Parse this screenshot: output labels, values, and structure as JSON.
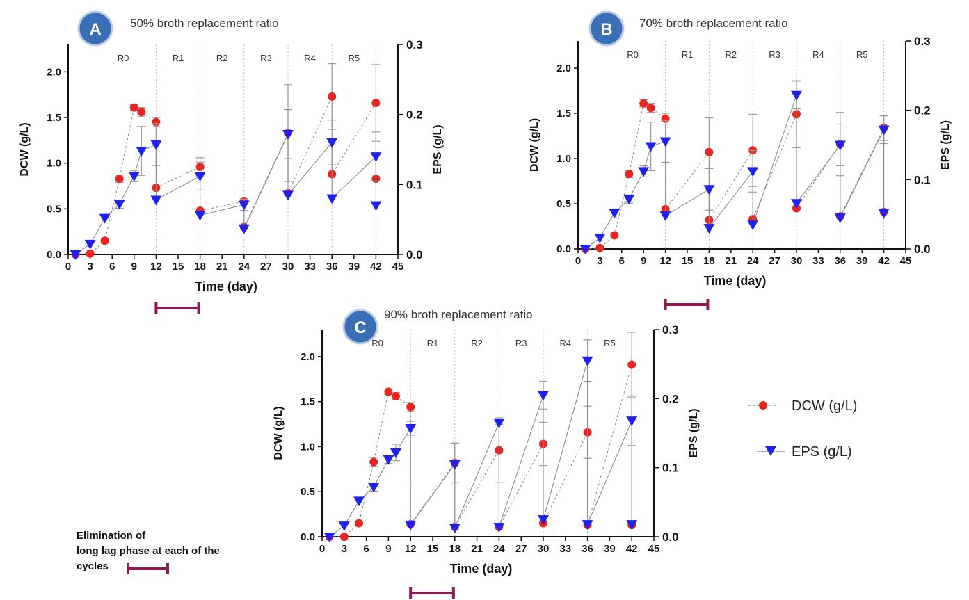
{
  "legend": {
    "dcw": "DCW (g/L)",
    "eps": "EPS (g/L)"
  },
  "note": {
    "lines": [
      "Elimination of",
      "long lag phase at each of the",
      "cycles"
    ]
  },
  "colors": {
    "dcw": "#e8251f",
    "eps": "#1f22e8",
    "badge": "#3a6fb5",
    "badge_border": "#b8ccea",
    "bar": "#8e1b54",
    "errorbar": "#9a9a9a",
    "cycle_line": "#bdbdbd"
  },
  "chart_data": [
    {
      "type": "line",
      "badge": "A",
      "title": "50% broth replacement ratio",
      "xlabel": "Time (day)",
      "ylabel": "DCW (g/L)",
      "y2label": "EPS (g/L)",
      "xlim": [
        0,
        45
      ],
      "ylim": [
        0,
        2.3
      ],
      "y2lim": [
        0,
        0.3
      ],
      "xticks": [
        "0",
        "3",
        "6",
        "9",
        "12",
        "15",
        "18",
        "21",
        "24",
        "27",
        "30",
        "33",
        "36",
        "39",
        "42",
        "45"
      ],
      "yticks": [
        "0.0",
        "0.5",
        "1.0",
        "1.5",
        "2.0"
      ],
      "y2ticks": [
        "0.0",
        "0.1",
        "0.2",
        "0.3"
      ],
      "cycles": [
        "R0",
        "R1",
        "R2",
        "R3",
        "R4",
        "R5"
      ],
      "cycle_boundaries": [
        12,
        18,
        24,
        30,
        36,
        42
      ],
      "series": [
        {
          "name": "DCW (g/L)",
          "axis": "left",
          "marker": "circle",
          "dash": true,
          "x": [
            1,
            3,
            5,
            7,
            9,
            10,
            12,
            12,
            18,
            18,
            24,
            24,
            30,
            30,
            36,
            36,
            42,
            42
          ],
          "y": [
            0.0,
            0.01,
            0.15,
            0.83,
            1.61,
            1.56,
            1.45,
            0.73,
            0.96,
            0.48,
            0.58,
            0.3,
            1.33,
            0.67,
            1.73,
            0.88,
            1.66,
            0.83
          ],
          "err": [
            0,
            0,
            0,
            0.04,
            0.03,
            0.05,
            0.05,
            0,
            0.1,
            0,
            0.03,
            0,
            0.53,
            0,
            0.36,
            0,
            0.42,
            0
          ]
        },
        {
          "name": "EPS (g/L)",
          "axis": "right",
          "marker": "triangle",
          "dash": false,
          "x": [
            1,
            3,
            5,
            7,
            9,
            10,
            12,
            12,
            18,
            18,
            24,
            24,
            30,
            30,
            36,
            36,
            42,
            42
          ],
          "y": [
            0.0,
            0.015,
            0.052,
            0.072,
            0.112,
            0.148,
            0.157,
            0.078,
            0.112,
            0.056,
            0.071,
            0.037,
            0.172,
            0.085,
            0.16,
            0.08,
            0.14,
            0.07
          ],
          "err": [
            0,
            0,
            0,
            0.006,
            0.008,
            0.035,
            0.03,
            0,
            0.02,
            0,
            0.008,
            0,
            0.035,
            0,
            0.032,
            0,
            0.035,
            0
          ]
        }
      ]
    },
    {
      "type": "line",
      "badge": "B",
      "title": "70% broth replacement ratio",
      "xlabel": "Time (day)",
      "ylabel": "DCW (g/L)",
      "y2label": "EPS (g/L)",
      "xlim": [
        0,
        45
      ],
      "ylim": [
        0,
        2.3
      ],
      "y2lim": [
        0,
        0.3
      ],
      "xticks": [
        "0",
        "3",
        "6",
        "9",
        "12",
        "15",
        "18",
        "21",
        "24",
        "27",
        "30",
        "33",
        "36",
        "39",
        "42",
        "45"
      ],
      "yticks": [
        "0.0",
        "0.5",
        "1.0",
        "1.5",
        "2.0"
      ],
      "y2ticks": [
        "0.0",
        "0.1",
        "0.2",
        "0.3"
      ],
      "cycles": [
        "R0",
        "R1",
        "R2",
        "R3",
        "R4",
        "R5"
      ],
      "cycle_boundaries": [
        12,
        18,
        24,
        30,
        36,
        42
      ],
      "series": [
        {
          "name": "DCW (g/L)",
          "axis": "left",
          "marker": "circle",
          "dash": true,
          "x": [
            1,
            3,
            5,
            7,
            9,
            10,
            12,
            12,
            18,
            18,
            24,
            24,
            30,
            30,
            36,
            36,
            42,
            42
          ],
          "y": [
            0.0,
            0.01,
            0.15,
            0.83,
            1.61,
            1.56,
            1.44,
            0.44,
            1.07,
            0.32,
            1.09,
            0.33,
            1.49,
            0.45,
            1.16,
            0.36,
            1.34,
            0.41
          ],
          "err": [
            0,
            0,
            0,
            0.04,
            0.04,
            0.05,
            0.06,
            0,
            0.38,
            0,
            0.4,
            0,
            0.37,
            0,
            0.35,
            0,
            0.14,
            0
          ]
        },
        {
          "name": "EPS (g/L)",
          "axis": "right",
          "marker": "triangle",
          "dash": false,
          "x": [
            1,
            3,
            5,
            7,
            9,
            10,
            12,
            12,
            18,
            18,
            24,
            24,
            30,
            30,
            36,
            36,
            42,
            42
          ],
          "y": [
            0.0,
            0.016,
            0.052,
            0.072,
            0.112,
            0.148,
            0.155,
            0.048,
            0.086,
            0.03,
            0.112,
            0.035,
            0.222,
            0.066,
            0.15,
            0.045,
            0.172,
            0.052
          ],
          "err": [
            0,
            0,
            0,
            0.006,
            0.008,
            0.035,
            0.03,
            0,
            0.03,
            0,
            0.03,
            0,
            0.02,
            0,
            0.03,
            0,
            0.02,
            0
          ]
        }
      ]
    },
    {
      "type": "line",
      "badge": "C",
      "title": "90% broth replacement ratio",
      "xlabel": "Time  (day)",
      "ylabel": "DCW (g/L)",
      "y2label": "EPS (g/L)",
      "xlim": [
        0,
        45
      ],
      "ylim": [
        0,
        2.3
      ],
      "y2lim": [
        0,
        0.3
      ],
      "xticks": [
        "0",
        "3",
        "6",
        "9",
        "12",
        "15",
        "18",
        "21",
        "24",
        "27",
        "30",
        "33",
        "36",
        "39",
        "42",
        "45"
      ],
      "yticks": [
        "0.0",
        "0.5",
        "1.0",
        "1.5",
        "2.0"
      ],
      "y2ticks": [
        "0.0",
        "0.1",
        "0.2",
        "0.3"
      ],
      "cycles": [
        "R0",
        "R1",
        "R2",
        "R3",
        "R4",
        "R5"
      ],
      "cycle_boundaries": [
        12,
        18,
        24,
        30,
        36,
        42
      ],
      "series": [
        {
          "name": "DCW (g/L)",
          "axis": "left",
          "marker": "circle",
          "dash": true,
          "x": [
            1,
            3,
            5,
            7,
            9,
            10,
            12,
            12,
            18,
            18,
            24,
            24,
            30,
            30,
            36,
            36,
            42,
            42
          ],
          "y": [
            0.0,
            0.0,
            0.15,
            0.83,
            1.61,
            1.56,
            1.44,
            0.14,
            0.82,
            0.11,
            0.96,
            0.11,
            1.03,
            0.15,
            1.16,
            0.13,
            1.91,
            0.13
          ],
          "err": [
            0,
            0,
            0,
            0.05,
            0.03,
            0.04,
            0.05,
            0,
            0.22,
            0,
            0.36,
            0,
            0.24,
            0,
            0.29,
            0,
            0.36,
            0
          ]
        },
        {
          "name": "EPS (g/L)",
          "axis": "right",
          "marker": "triangle",
          "dash": false,
          "x": [
            1,
            3,
            5,
            7,
            9,
            10,
            12,
            12,
            18,
            18,
            24,
            24,
            30,
            30,
            36,
            36,
            42,
            42
          ],
          "y": [
            0.0,
            0.016,
            0.052,
            0.072,
            0.112,
            0.122,
            0.157,
            0.017,
            0.105,
            0.013,
            0.165,
            0.014,
            0.205,
            0.025,
            0.255,
            0.018,
            0.168,
            0.018
          ],
          "err": [
            0,
            0,
            0,
            0.006,
            0.006,
            0.012,
            0.01,
            0,
            0.03,
            0,
            0.002,
            0,
            0.02,
            0,
            0.03,
            0,
            0.036,
            0
          ]
        }
      ]
    }
  ]
}
